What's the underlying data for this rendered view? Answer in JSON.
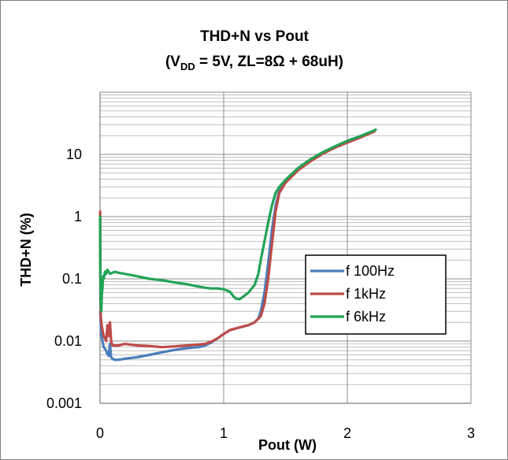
{
  "chart_data": {
    "type": "line",
    "title": "THD+N vs Pout",
    "subtitle": {
      "prefix": "(V",
      "subscript": "DD",
      "suffix": " = 5V, ZL=8Ω + 68uH)"
    },
    "xlabel": "Pout (W)",
    "ylabel": "THD+N (%)",
    "xlim": [
      0,
      3
    ],
    "ylim": [
      0.001,
      100
    ],
    "yscale": "log",
    "x_ticks": [
      "0",
      "1",
      "2",
      "3"
    ],
    "y_ticks": [
      "0.001",
      "0.01",
      "0.1",
      "1",
      "10"
    ],
    "grid": true,
    "legend_position": "right",
    "series": [
      {
        "name": "f 100Hz",
        "color": "#4a7ebb",
        "points": [
          [
            0.002,
            0.03
          ],
          [
            0.005,
            0.02
          ],
          [
            0.01,
            0.013
          ],
          [
            0.02,
            0.01
          ],
          [
            0.03,
            0.008
          ],
          [
            0.04,
            0.0075
          ],
          [
            0.05,
            0.007
          ],
          [
            0.06,
            0.0062
          ],
          [
            0.07,
            0.0058
          ],
          [
            0.08,
            0.009
          ],
          [
            0.09,
            0.0055
          ],
          [
            0.1,
            0.0052
          ],
          [
            0.12,
            0.005
          ],
          [
            0.15,
            0.005
          ],
          [
            0.2,
            0.0052
          ],
          [
            0.3,
            0.0055
          ],
          [
            0.4,
            0.006
          ],
          [
            0.5,
            0.0066
          ],
          [
            0.6,
            0.0072
          ],
          [
            0.7,
            0.0077
          ],
          [
            0.8,
            0.008
          ],
          [
            0.85,
            0.0085
          ],
          [
            0.9,
            0.0095
          ],
          [
            0.95,
            0.011
          ],
          [
            1.0,
            0.013
          ],
          [
            1.05,
            0.015
          ],
          [
            1.1,
            0.016
          ],
          [
            1.15,
            0.017
          ],
          [
            1.2,
            0.018
          ],
          [
            1.25,
            0.02
          ],
          [
            1.28,
            0.023
          ],
          [
            1.3,
            0.03
          ],
          [
            1.33,
            0.06
          ],
          [
            1.36,
            0.18
          ],
          [
            1.39,
            0.6
          ],
          [
            1.42,
            1.5
          ],
          [
            1.45,
            2.6
          ],
          [
            1.5,
            3.7
          ],
          [
            1.6,
            5.7
          ],
          [
            1.7,
            8.0
          ],
          [
            1.8,
            10.5
          ],
          [
            1.9,
            13.0
          ],
          [
            2.0,
            16.0
          ],
          [
            2.1,
            19.0
          ],
          [
            2.2,
            23.0
          ],
          [
            2.22,
            24.0
          ]
        ]
      },
      {
        "name": "f 1kHz",
        "color": "#be4b48",
        "points": [
          [
            0.001,
            1.2
          ],
          [
            0.003,
            0.04
          ],
          [
            0.006,
            0.025
          ],
          [
            0.01,
            0.02
          ],
          [
            0.02,
            0.015
          ],
          [
            0.03,
            0.012
          ],
          [
            0.04,
            0.011
          ],
          [
            0.05,
            0.01
          ],
          [
            0.06,
            0.018
          ],
          [
            0.07,
            0.012
          ],
          [
            0.08,
            0.02
          ],
          [
            0.09,
            0.01
          ],
          [
            0.1,
            0.0085
          ],
          [
            0.15,
            0.0085
          ],
          [
            0.2,
            0.009
          ],
          [
            0.3,
            0.0085
          ],
          [
            0.4,
            0.0083
          ],
          [
            0.5,
            0.008
          ],
          [
            0.6,
            0.0082
          ],
          [
            0.7,
            0.0085
          ],
          [
            0.8,
            0.0088
          ],
          [
            0.85,
            0.009
          ],
          [
            0.9,
            0.0098
          ],
          [
            0.95,
            0.011
          ],
          [
            1.0,
            0.013
          ],
          [
            1.05,
            0.015
          ],
          [
            1.1,
            0.016
          ],
          [
            1.15,
            0.017
          ],
          [
            1.2,
            0.018
          ],
          [
            1.25,
            0.02
          ],
          [
            1.3,
            0.025
          ],
          [
            1.33,
            0.04
          ],
          [
            1.36,
            0.1
          ],
          [
            1.39,
            0.35
          ],
          [
            1.42,
            1.2
          ],
          [
            1.45,
            2.4
          ],
          [
            1.5,
            3.5
          ],
          [
            1.6,
            5.5
          ],
          [
            1.7,
            7.7
          ],
          [
            1.8,
            10.2
          ],
          [
            1.9,
            12.8
          ],
          [
            2.0,
            15.5
          ],
          [
            2.1,
            18.5
          ],
          [
            2.2,
            22.5
          ],
          [
            2.22,
            23.5
          ]
        ]
      },
      {
        "name": "f 6kHz",
        "color": "#21a356",
        "points": [
          [
            0.0005,
            1.0
          ],
          [
            0.002,
            0.2
          ],
          [
            0.005,
            0.04
          ],
          [
            0.01,
            0.03
          ],
          [
            0.015,
            0.06
          ],
          [
            0.02,
            0.07
          ],
          [
            0.025,
            0.11
          ],
          [
            0.03,
            0.1
          ],
          [
            0.04,
            0.13
          ],
          [
            0.05,
            0.12
          ],
          [
            0.06,
            0.14
          ],
          [
            0.08,
            0.12
          ],
          [
            0.1,
            0.125
          ],
          [
            0.12,
            0.13
          ],
          [
            0.15,
            0.125
          ],
          [
            0.2,
            0.12
          ],
          [
            0.3,
            0.11
          ],
          [
            0.4,
            0.1
          ],
          [
            0.5,
            0.095
          ],
          [
            0.6,
            0.088
          ],
          [
            0.7,
            0.082
          ],
          [
            0.8,
            0.075
          ],
          [
            0.85,
            0.072
          ],
          [
            0.9,
            0.07
          ],
          [
            0.95,
            0.07
          ],
          [
            1.0,
            0.068
          ],
          [
            1.05,
            0.062
          ],
          [
            1.08,
            0.052
          ],
          [
            1.1,
            0.048
          ],
          [
            1.13,
            0.047
          ],
          [
            1.16,
            0.052
          ],
          [
            1.2,
            0.06
          ],
          [
            1.25,
            0.08
          ],
          [
            1.28,
            0.12
          ],
          [
            1.3,
            0.2
          ],
          [
            1.33,
            0.4
          ],
          [
            1.36,
            0.8
          ],
          [
            1.39,
            1.5
          ],
          [
            1.42,
            2.4
          ],
          [
            1.45,
            3.0
          ],
          [
            1.5,
            3.9
          ],
          [
            1.6,
            6.0
          ],
          [
            1.7,
            8.3
          ],
          [
            1.8,
            10.8
          ],
          [
            1.9,
            13.5
          ],
          [
            2.0,
            16.5
          ],
          [
            2.1,
            19.5
          ],
          [
            2.2,
            23.5
          ],
          [
            2.23,
            25.0
          ]
        ]
      }
    ]
  }
}
